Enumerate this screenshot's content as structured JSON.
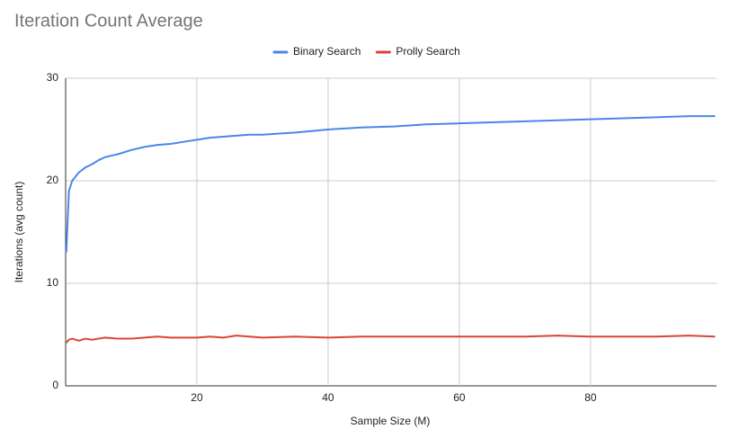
{
  "chart_data": {
    "type": "line",
    "title": "Iteration Count Average",
    "x_label": "Sample Size (M)",
    "y_label": "Iterations (avg count)",
    "x": [
      0.1,
      0.5,
      1,
      2,
      3,
      4,
      5,
      6,
      8,
      10,
      12,
      14,
      16,
      18,
      20,
      22,
      24,
      26,
      28,
      30,
      35,
      40,
      45,
      50,
      55,
      60,
      65,
      70,
      75,
      80,
      85,
      90,
      95,
      99
    ],
    "series": [
      {
        "name": "Binary Search",
        "color": "#4a86e8",
        "values": [
          13,
          19,
          20,
          20.8,
          21.3,
          21.6,
          22,
          22.3,
          22.6,
          23,
          23.3,
          23.5,
          23.6,
          23.8,
          24,
          24.2,
          24.3,
          24.4,
          24.5,
          24.5,
          24.7,
          25,
          25.2,
          25.3,
          25.5,
          25.6,
          25.7,
          25.8,
          25.9,
          26,
          26.1,
          26.2,
          26.3,
          26.3
        ]
      },
      {
        "name": "Prolly Search",
        "color": "#db4437",
        "values": [
          4.2,
          4.5,
          4.6,
          4.4,
          4.6,
          4.5,
          4.6,
          4.7,
          4.6,
          4.6,
          4.7,
          4.8,
          4.7,
          4.7,
          4.7,
          4.8,
          4.7,
          4.9,
          4.8,
          4.7,
          4.8,
          4.7,
          4.8,
          4.8,
          4.8,
          4.8,
          4.8,
          4.8,
          4.9,
          4.8,
          4.8,
          4.8,
          4.9,
          4.8
        ]
      }
    ],
    "xlim": [
      0,
      99.2
    ],
    "xticks": [
      20,
      40,
      60,
      80
    ],
    "ylim": [
      0,
      30
    ],
    "yticks": [
      0,
      10,
      20,
      30
    ],
    "grid": true,
    "legend": "top"
  }
}
